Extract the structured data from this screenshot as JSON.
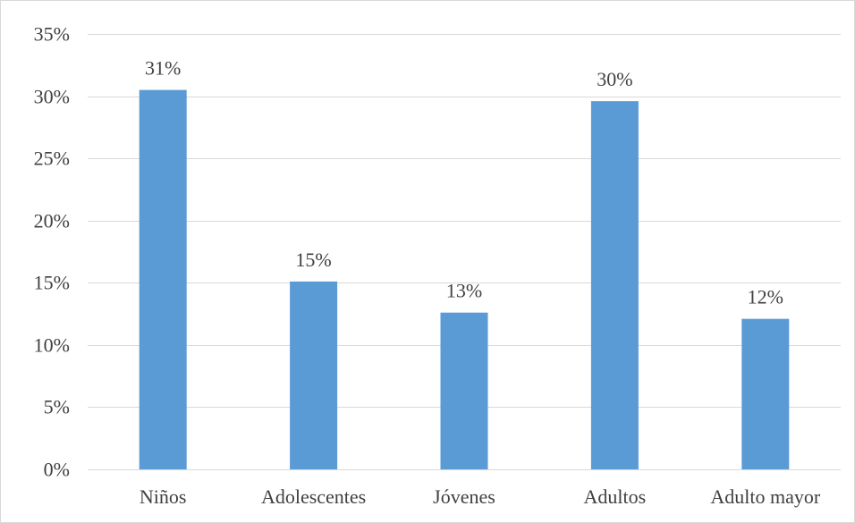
{
  "chart_data": {
    "type": "bar",
    "title": "",
    "xlabel": "",
    "ylabel": "",
    "categories": [
      "Niños",
      "Adolescentes",
      "Jóvenes",
      "Adultos",
      "Adulto mayor"
    ],
    "values": [
      30.5,
      15.1,
      12.6,
      29.6,
      12.1
    ],
    "data_labels": [
      "31%",
      "15%",
      "13%",
      "30%",
      "12%"
    ],
    "ylim": [
      0,
      35
    ],
    "yticks": [
      0,
      5,
      10,
      15,
      20,
      25,
      30,
      35
    ],
    "ytick_labels": [
      "0%",
      "5%",
      "10%",
      "15%",
      "20%",
      "25%",
      "30%",
      "35%"
    ],
    "grid": true,
    "legend": "none",
    "colors": {
      "bar": "#5b9bd5",
      "grid": "#d9d9d9",
      "text": "#404040"
    }
  }
}
